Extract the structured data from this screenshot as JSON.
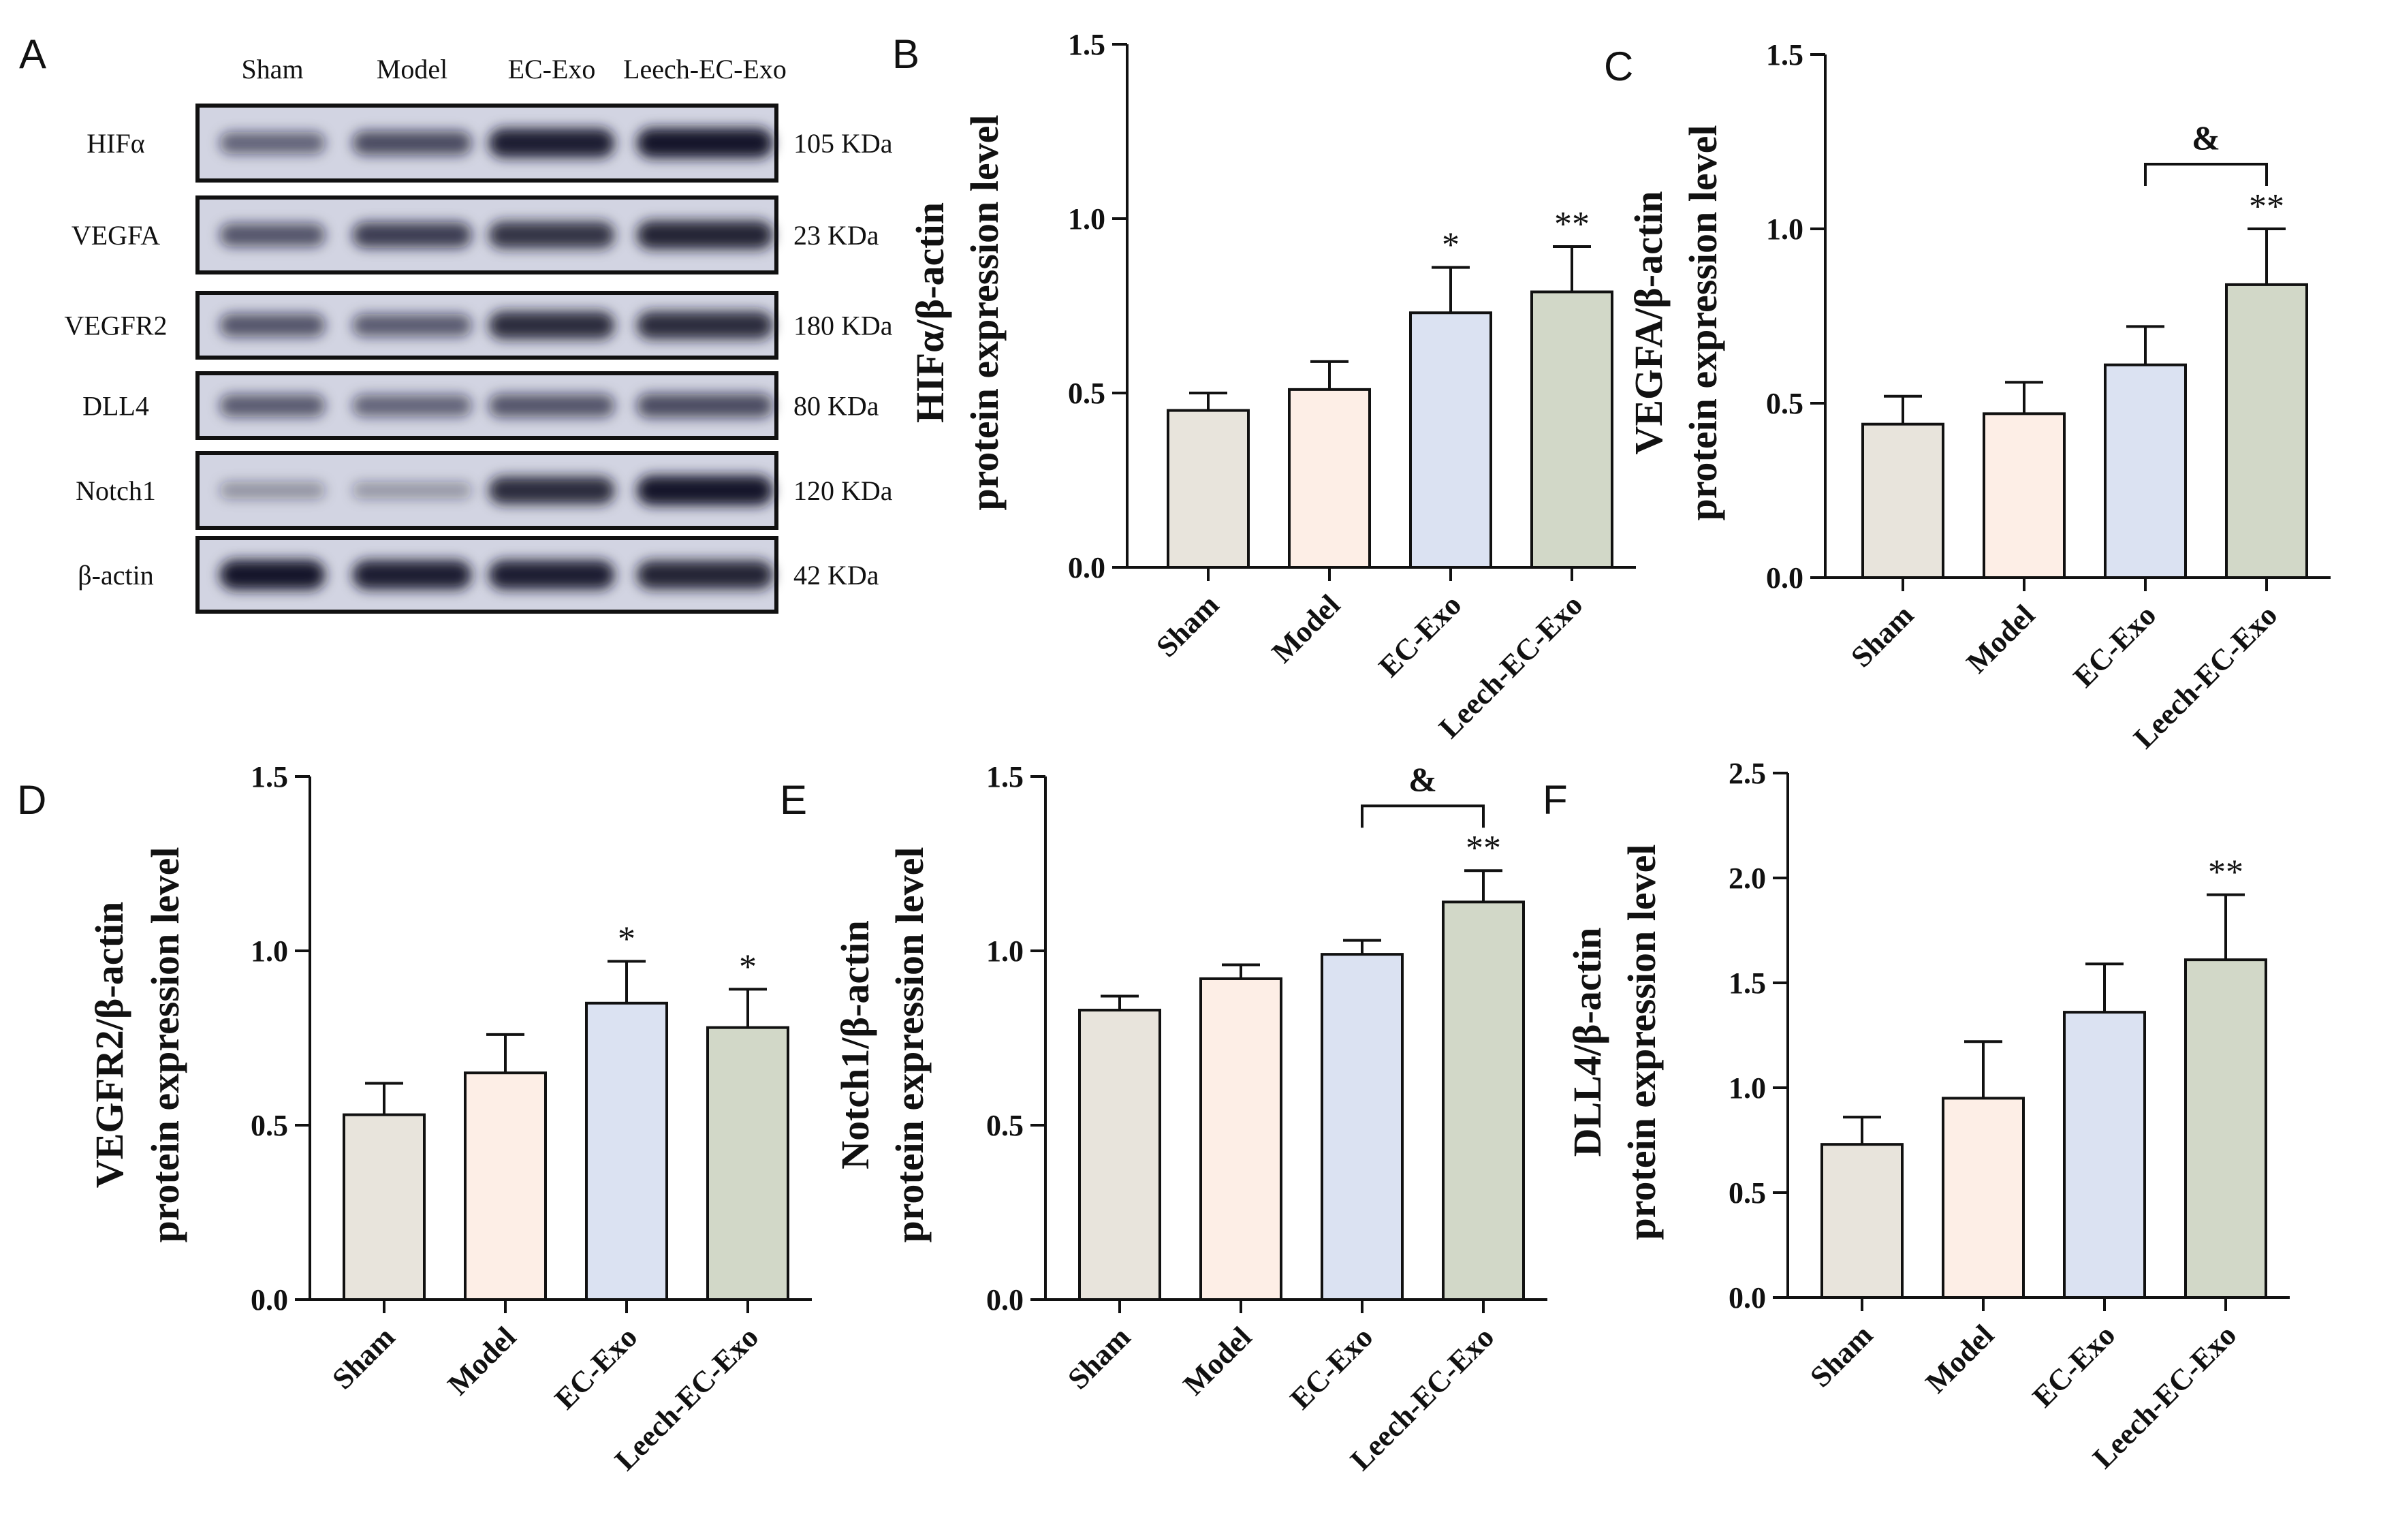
{
  "figure": {
    "blot": {
      "letter": "A",
      "lanes": [
        "Sham",
        "Model",
        "EC-Exo",
        "Leech-EC-Exo"
      ],
      "rows": [
        {
          "protein": "HIFα",
          "size": "105 KDa",
          "intensity": [
            0.45,
            0.6,
            0.95,
            1.0
          ]
        },
        {
          "protein": "VEGFA",
          "size": "23 KDa",
          "intensity": [
            0.55,
            0.7,
            0.8,
            0.9
          ]
        },
        {
          "protein": "VEGFR2",
          "size": "180 KDa",
          "intensity": [
            0.55,
            0.5,
            0.85,
            0.85
          ]
        },
        {
          "protein": "DLL4",
          "size": "80 KDa",
          "intensity": [
            0.5,
            0.45,
            0.55,
            0.6
          ]
        },
        {
          "protein": "Notch1",
          "size": "120 KDa",
          "intensity": [
            0.15,
            0.12,
            0.85,
            1.0
          ]
        },
        {
          "protein": "β-actin",
          "size": "42 KDa",
          "intensity": [
            1.0,
            0.95,
            0.95,
            0.9
          ]
        }
      ],
      "colors": {
        "background": "#d2d4e2",
        "band": "#14142a"
      }
    }
  },
  "chart_data": [
    {
      "type": "bar",
      "letter": "B",
      "ylabel_line1": "HIFα/β-actin",
      "ylabel_line2": "protein expression level",
      "categories": [
        "Sham",
        "Model",
        "EC-Exo",
        "Leech-EC-Exo"
      ],
      "values": [
        0.45,
        0.51,
        0.73,
        0.79
      ],
      "errors": [
        0.05,
        0.08,
        0.13,
        0.13
      ],
      "significance": [
        "",
        "",
        "*",
        "**"
      ],
      "ylim": [
        0,
        1.5
      ],
      "yticks": [
        "0.0",
        "0.5",
        "1.0",
        "1.5"
      ],
      "bracket": null
    },
    {
      "type": "bar",
      "letter": "C",
      "ylabel_line1": "VEGFA/β-actin",
      "ylabel_line2": "protein expression level",
      "categories": [
        "Sham",
        "Model",
        "EC-Exo",
        "Leech-EC-Exo"
      ],
      "values": [
        0.44,
        0.47,
        0.61,
        0.84
      ],
      "errors": [
        0.08,
        0.09,
        0.11,
        0.16
      ],
      "significance": [
        "",
        "",
        "",
        "**"
      ],
      "ylim": [
        0,
        1.5
      ],
      "yticks": [
        "0.0",
        "0.5",
        "1.0",
        "1.5"
      ],
      "bracket": {
        "from": 2,
        "to": 3,
        "label": "&"
      }
    },
    {
      "type": "bar",
      "letter": "D",
      "ylabel_line1": "VEGFR2/β-actin",
      "ylabel_line2": "protein expression level",
      "categories": [
        "Sham",
        "Model",
        "EC-Exo",
        "Leech-EC-Exo"
      ],
      "values": [
        0.53,
        0.65,
        0.85,
        0.78
      ],
      "errors": [
        0.09,
        0.11,
        0.12,
        0.11
      ],
      "significance": [
        "",
        "",
        "*",
        "*"
      ],
      "ylim": [
        0,
        1.5
      ],
      "yticks": [
        "0.0",
        "0.5",
        "1.0",
        "1.5"
      ],
      "bracket": null
    },
    {
      "type": "bar",
      "letter": "E",
      "ylabel_line1": "Notch1/β-actin",
      "ylabel_line2": "protein expression level",
      "categories": [
        "Sham",
        "Model",
        "EC-Exo",
        "Leech-EC-Exo"
      ],
      "values": [
        0.83,
        0.92,
        0.99,
        1.14
      ],
      "errors": [
        0.04,
        0.04,
        0.04,
        0.09
      ],
      "significance": [
        "",
        "",
        "",
        "**"
      ],
      "ylim": [
        0,
        1.5
      ],
      "yticks": [
        "0.0",
        "0.5",
        "1.0",
        "1.5"
      ],
      "bracket": {
        "from": 2,
        "to": 3,
        "label": "&"
      }
    },
    {
      "type": "bar",
      "letter": "F",
      "ylabel_line1": "DLL4/β-actin",
      "ylabel_line2": "protein expression level",
      "categories": [
        "Sham",
        "Model",
        "EC-Exo",
        "Leech-EC-Exo"
      ],
      "values": [
        0.73,
        0.95,
        1.36,
        1.61
      ],
      "errors": [
        0.13,
        0.27,
        0.23,
        0.31
      ],
      "significance": [
        "",
        "",
        "",
        "**"
      ],
      "ylim": [
        0,
        2.5
      ],
      "yticks": [
        "0.0",
        "0.5",
        "1.0",
        "1.5",
        "2.0",
        "2.5"
      ],
      "bracket": null
    }
  ],
  "colors": {
    "bars": [
      "#e8e4dc",
      "#fdeee6",
      "#dbe2f2",
      "#d2d8c8"
    ],
    "axis": "#111111"
  }
}
